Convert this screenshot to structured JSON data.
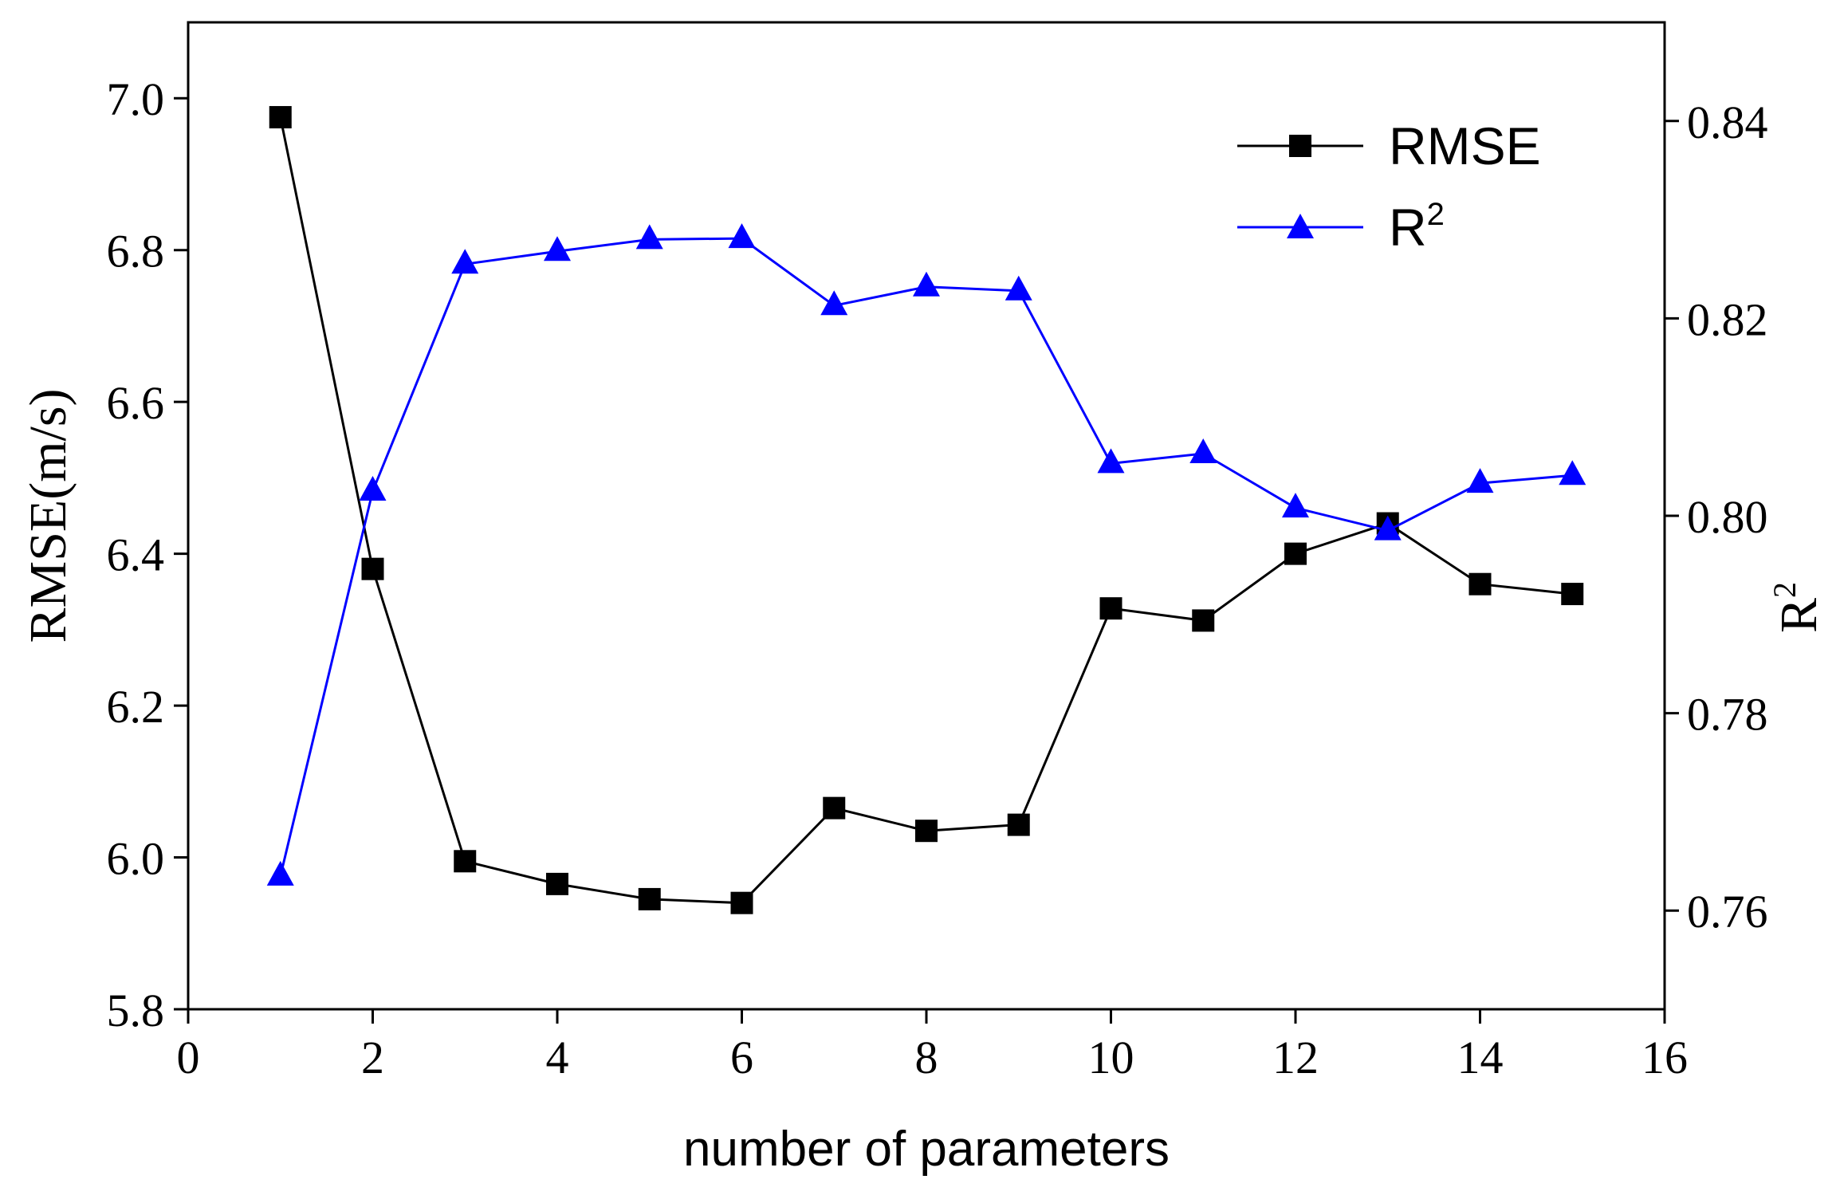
{
  "chart_data": {
    "type": "line",
    "xlabel": "number of parameters",
    "ylabel_left": "RMSE(m/s)",
    "ylabel_right_base": "R",
    "ylabel_right_sup": "2",
    "xlim": [
      0,
      16
    ],
    "ylim_left": [
      5.8,
      7.1
    ],
    "ylim_right": [
      0.75,
      0.85
    ],
    "x_ticks": [
      0,
      2,
      4,
      6,
      8,
      10,
      12,
      14,
      16
    ],
    "x_tick_labels": [
      "0",
      "2",
      "4",
      "6",
      "8",
      "10",
      "12",
      "14",
      "16"
    ],
    "y_left_ticks": [
      5.8,
      6.0,
      6.2,
      6.4,
      6.6,
      6.8,
      7.0
    ],
    "y_left_tick_labels": [
      "5.8",
      "6.0",
      "6.2",
      "6.4",
      "6.6",
      "6.8",
      "7.0"
    ],
    "y_right_ticks": [
      0.76,
      0.78,
      0.8,
      0.82,
      0.84
    ],
    "y_right_tick_labels": [
      "0.76",
      "0.78",
      "0.80",
      "0.82",
      "0.84"
    ],
    "x": [
      1,
      2,
      3,
      4,
      5,
      6,
      7,
      8,
      9,
      10,
      11,
      12,
      13,
      14,
      15
    ],
    "series": [
      {
        "name": "RMSE",
        "axis": "left",
        "marker": "square",
        "color": "#000000",
        "values": [
          6.975,
          6.38,
          5.995,
          5.965,
          5.945,
          5.94,
          6.065,
          6.035,
          6.043,
          6.328,
          6.312,
          6.4,
          6.44,
          6.36,
          6.347
        ]
      },
      {
        "name": "R",
        "name_sup": "2",
        "axis": "right",
        "marker": "triangle",
        "color": "#0000ff",
        "values": [
          0.7635,
          0.8025,
          0.8255,
          0.8268,
          0.828,
          0.8281,
          0.8213,
          0.8232,
          0.8228,
          0.8053,
          0.8063,
          0.8008,
          0.7985,
          0.8033,
          0.8041
        ]
      }
    ],
    "legend_position": "top-right",
    "grid": false
  }
}
